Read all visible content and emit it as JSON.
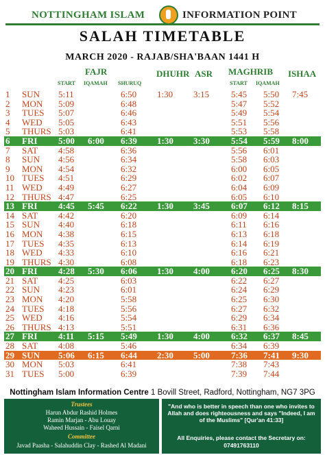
{
  "header": {
    "org_left": "NOTTINGHAM ISLAM",
    "org_right": "INFORMATION POINT",
    "title": "SALAH TIMETABLE",
    "subtitle": "MARCH 2020 - RAJAB/SHA'BAAN 1441 H"
  },
  "columns": {
    "fajr": "FAJR",
    "dhuhr": "DHUHR",
    "asr": "ASR",
    "maghrib": "MAGHRIB",
    "ishaa": "ISHAA",
    "start": "START",
    "iqamah": "IQAMAH",
    "shuruq": "SHURUQ",
    "m_start": "START",
    "m_iqamah": "IQAMAH"
  },
  "colors": {
    "green": "#3a9a3a",
    "orange": "#e06a20",
    "text_red": "#c0441a",
    "panel": "#14603a"
  },
  "rows": [
    {
      "date": "1",
      "day": "SUN",
      "fs": "5:11",
      "fi": "",
      "sh": "6:50",
      "dh": "1:30",
      "as": "3:15",
      "ms": "5:45",
      "mi": "5:50",
      "is": "7:45",
      "style": ""
    },
    {
      "date": "2",
      "day": "MON",
      "fs": "5:09",
      "fi": "",
      "sh": "6:48",
      "dh": "",
      "as": "",
      "ms": "5:47",
      "mi": "5:52",
      "is": "",
      "style": ""
    },
    {
      "date": "3",
      "day": "TUES",
      "fs": "5:07",
      "fi": "",
      "sh": "6:46",
      "dh": "",
      "as": "",
      "ms": "5:49",
      "mi": "5:54",
      "is": "",
      "style": ""
    },
    {
      "date": "4",
      "day": "WED",
      "fs": "5:05",
      "fi": "",
      "sh": "6:43",
      "dh": "",
      "as": "",
      "ms": "5:51",
      "mi": "5:56",
      "is": "",
      "style": ""
    },
    {
      "date": "5",
      "day": "THURS",
      "fs": "5:03",
      "fi": "",
      "sh": "6:41",
      "dh": "",
      "as": "",
      "ms": "5:53",
      "mi": "5:58",
      "is": "",
      "style": ""
    },
    {
      "date": "6",
      "day": "FRI",
      "fs": "5:00",
      "fi": "6:00",
      "sh": "6:39",
      "dh": "1:30",
      "as": "3:30",
      "ms": "5:54",
      "mi": "5:59",
      "is": "8:00",
      "style": "fri"
    },
    {
      "date": "7",
      "day": "SAT",
      "fs": "4:58",
      "fi": "",
      "sh": "6:36",
      "dh": "",
      "as": "",
      "ms": "5:56",
      "mi": "6:01",
      "is": "",
      "style": ""
    },
    {
      "date": "8",
      "day": "SUN",
      "fs": "4:56",
      "fi": "",
      "sh": "6:34",
      "dh": "",
      "as": "",
      "ms": "5:58",
      "mi": "6:03",
      "is": "",
      "style": ""
    },
    {
      "date": "9",
      "day": "MON",
      "fs": "4:54",
      "fi": "",
      "sh": "6:32",
      "dh": "",
      "as": "",
      "ms": "6:00",
      "mi": "6:05",
      "is": "",
      "style": ""
    },
    {
      "date": "10",
      "day": "TUES",
      "fs": "4:51",
      "fi": "",
      "sh": "6:29",
      "dh": "",
      "as": "",
      "ms": "6:02",
      "mi": "6:07",
      "is": "",
      "style": ""
    },
    {
      "date": "11",
      "day": "WED",
      "fs": "4:49",
      "fi": "",
      "sh": "6:27",
      "dh": "",
      "as": "",
      "ms": "6:04",
      "mi": "6:09",
      "is": "",
      "style": ""
    },
    {
      "date": "12",
      "day": "THURS",
      "fs": "4:47",
      "fi": "",
      "sh": "6:25",
      "dh": "",
      "as": "",
      "ms": "6:05",
      "mi": "6:10",
      "is": "",
      "style": ""
    },
    {
      "date": "13",
      "day": "FRI",
      "fs": "4:45",
      "fi": "5:45",
      "sh": "6:22",
      "dh": "1:30",
      "as": "3:45",
      "ms": "6:07",
      "mi": "6:12",
      "is": "8:15",
      "style": "fri"
    },
    {
      "date": "14",
      "day": "SAT",
      "fs": "4:42",
      "fi": "",
      "sh": "6:20",
      "dh": "",
      "as": "",
      "ms": "6:09",
      "mi": "6:14",
      "is": "",
      "style": ""
    },
    {
      "date": "15",
      "day": "SUN",
      "fs": "4:40",
      "fi": "",
      "sh": "6:18",
      "dh": "",
      "as": "",
      "ms": "6:11",
      "mi": "6:16",
      "is": "",
      "style": ""
    },
    {
      "date": "16",
      "day": "MON",
      "fs": "4:38",
      "fi": "",
      "sh": "6:15",
      "dh": "",
      "as": "",
      "ms": "6:13",
      "mi": "6:18",
      "is": "",
      "style": ""
    },
    {
      "date": "17",
      "day": "TUES",
      "fs": "4:35",
      "fi": "",
      "sh": "6:13",
      "dh": "",
      "as": "",
      "ms": "6:14",
      "mi": "6:19",
      "is": "",
      "style": ""
    },
    {
      "date": "18",
      "day": "WED",
      "fs": "4:33",
      "fi": "",
      "sh": "6:10",
      "dh": "",
      "as": "",
      "ms": "6:16",
      "mi": "6:21",
      "is": "",
      "style": ""
    },
    {
      "date": "19",
      "day": "THURS",
      "fs": "4:30",
      "fi": "",
      "sh": "6:08",
      "dh": "",
      "as": "",
      "ms": "6:18",
      "mi": "6:23",
      "is": "",
      "style": ""
    },
    {
      "date": "20",
      "day": "FRI",
      "fs": "4:28",
      "fi": "5:30",
      "sh": "6:06",
      "dh": "1:30",
      "as": "4:00",
      "ms": "6:20",
      "mi": "6:25",
      "is": "8:30",
      "style": "fri"
    },
    {
      "date": "21",
      "day": "SAT",
      "fs": "4:25",
      "fi": "",
      "sh": "6:03",
      "dh": "",
      "as": "",
      "ms": "6:22",
      "mi": "6:27",
      "is": "",
      "style": ""
    },
    {
      "date": "22",
      "day": "SUN",
      "fs": "4:23",
      "fi": "",
      "sh": "6:01",
      "dh": "",
      "as": "",
      "ms": "6:24",
      "mi": "6:29",
      "is": "",
      "style": ""
    },
    {
      "date": "23",
      "day": "MON",
      "fs": "4:20",
      "fi": "",
      "sh": "5:58",
      "dh": "",
      "as": "",
      "ms": "6:25",
      "mi": "6:30",
      "is": "",
      "style": ""
    },
    {
      "date": "24",
      "day": "TUES",
      "fs": "4:18",
      "fi": "",
      "sh": "5:56",
      "dh": "",
      "as": "",
      "ms": "6:27",
      "mi": "6:32",
      "is": "",
      "style": ""
    },
    {
      "date": "25",
      "day": "WED",
      "fs": "4:16",
      "fi": "",
      "sh": "5:54",
      "dh": "",
      "as": "",
      "ms": "6:29",
      "mi": "6:34",
      "is": "",
      "style": ""
    },
    {
      "date": "26",
      "day": "THURS",
      "fs": "4:13",
      "fi": "",
      "sh": "5:51",
      "dh": "",
      "as": "",
      "ms": "6:31",
      "mi": "6:36",
      "is": "",
      "style": ""
    },
    {
      "date": "27",
      "day": "FRI",
      "fs": "4:11",
      "fi": "5:15",
      "sh": "5:49",
      "dh": "1:30",
      "as": "4:00",
      "ms": "6:32",
      "mi": "6:37",
      "is": "8:45",
      "style": "fri"
    },
    {
      "date": "28",
      "day": "SAT",
      "fs": "4:08",
      "fi": "",
      "sh": "5:46",
      "dh": "",
      "as": "",
      "ms": "6:34",
      "mi": "6:39",
      "is": "",
      "style": ""
    },
    {
      "date": "29",
      "day": "SUN",
      "fs": "5:06",
      "fi": "6:15",
      "sh": "6:44",
      "dh": "2:30",
      "as": "5:00",
      "ms": "7:36",
      "mi": "7:41",
      "is": "9:30",
      "style": "dst"
    },
    {
      "date": "30",
      "day": "MON",
      "fs": "5:03",
      "fi": "",
      "sh": "6:41",
      "dh": "",
      "as": "",
      "ms": "7:38",
      "mi": "7:43",
      "is": "",
      "style": ""
    },
    {
      "date": "31",
      "day": "TUES",
      "fs": "5:00",
      "fi": "",
      "sh": "6:39",
      "dh": "",
      "as": "",
      "ms": "7:39",
      "mi": "7:44",
      "is": "",
      "style": ""
    }
  ],
  "footer": {
    "centre_name": "Nottingham Islam Information Centre",
    "address": "1 Bovill Street, Radford, Nottingham, NG7 3PG",
    "trustees_head": "Trustees",
    "trustees": [
      "Harun Abdur Rashid Holmes",
      "Ramin Marjan - Abu Louay",
      "Waheed Hussain - Faisel Qarni"
    ],
    "committee_head": "Committee",
    "committee": "Javad Paasha - Salahuddin Clay - Rashed Al Madani",
    "quote": "\"And who is better in speech than one who invites to Allah and does righteousness and says \"Indeed, I am of the Muslims\" [Qur'an 41:33]",
    "enquiries": "All Enquiries, please contact the Secretary on:",
    "phone": "07491763110"
  }
}
